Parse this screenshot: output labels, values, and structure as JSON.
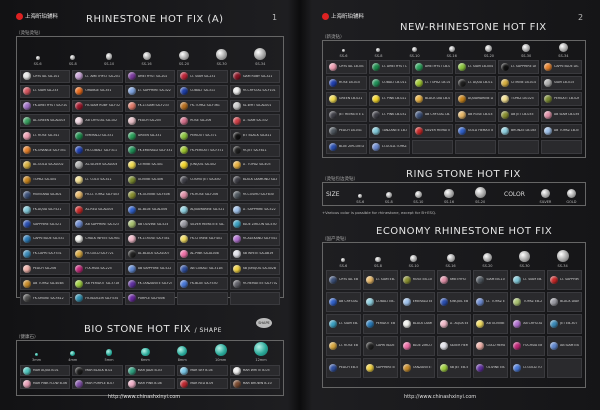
{
  "left": {
    "brand": "上海昕珀辅料",
    "page_number": "1",
    "title": "RHINESTONE HOT FIX (A)",
    "subtitle": "（烫钻烫钻）",
    "sizes": [
      "SS-6",
      "SS-8",
      "SS-10",
      "SS-16",
      "SS-20",
      "SS-30",
      "SS-34"
    ],
    "grid": [
      "CRYSTAL SA-101",
      "LT. AMETHYST SA-201",
      "AMETHYST SA-202",
      "LT. SIAM SA-231",
      "SIAM RUBY SA-321",
      "LT. SIAM SA-233",
      "ORANGE SA-351",
      "LT. SAPPHIRE SA-322",
      "COBALT SA-311",
      "FK.CRYSTAL SA-F101",
      "FK.AMETHYST SA-F202",
      "FK.SIAM RUBY SA-F321",
      "FK.LT.SIAM SA-F233",
      "FK.TOPAZ SA-F361",
      "AL.WHT SA-AL001",
      "AL.GREEN SA-AL003",
      "AB CRYSTAL SA-102",
      "PEACH SA-205",
      "ROSE SA-206",
      "LT. SIAM SA-332",
      "LT. ROSE SA-341",
      "EMERALD SA-331",
      "GREEN SA-331",
      "PERIDOT SA-371",
      "JET BLACK SA-811",
      "FK.ORANGE SA-F351",
      "FK.COBALT SA-F311",
      "FK.EMERALD SA-F331",
      "FK.PERIDOT SA-F371",
      "FK.JET SA-F811",
      "AL.GOLD SA-AL002",
      "AL.SILVER SA-AL004",
      "CITRINE SA-401",
      "JONQUIL SA-402",
      "LT. TOPAZ SA-403",
      "TOPAZ SA-404",
      "LT. COLO SA-411",
      "OLIVINE SA-406",
      "COSMO JET SA-830",
      "BLACK DIAMOND SA-820",
      "MONTANA SA-801",
      "FK.LT.TOPAZ SA-F403",
      "FK.OLIVINE SA-F406",
      "FK.ROSE SA-F206",
      "FK.COSMO SA-F830",
      "FK.AQUA SA-F521",
      "AL.RED SA-AL005",
      "AL.BLUE SA-AL006",
      "AQUAMARINE SA-521",
      "LT. SAPPHIRE SA-522",
      "SAPPHIRE SA-521",
      "AB SAPPHIRE SA-523",
      "AB OLIVINE SA-524",
      "SILVER HEMATITE SA-702",
      "BLUE ZIRCON SA-530",
      "CAPRI BLUE SA-531",
      "CHALK WHITE SA-901",
      "FK.LT.ROSE SA-F341",
      "FK.CITRINE SA-F401",
      "FK.ALEXAND SA-F541",
      "FK.CAPRI SA-F531",
      "FK.GOLD SA-F721",
      "AL.BLACK SA-AL007",
      "AL.PINK SA-AL008",
      "AB WHITE SA-AB19",
      "PEACH SA-206",
      "FUCHSIA SA-225",
      "AB SAPPHIRE SA-522",
      "AB COBALT SA-311B",
      "AB JONQUIL SA-402B",
      "AB TOPAZ SA-404B",
      "AB PERIDOT SA-371B",
      "FK.TANZANITE SA-F251",
      "FK.BLUE SA-F530",
      "FK.HEMATITE SA-F702",
      "FK.SMOKE SA-F812",
      "FK.BLUEZIR SA-F534",
      "PURPLE SA-H006",
      "",
      ""
    ],
    "bio_title": "BIO STONE HOT FIX",
    "bio_shape": "/ SHAPE",
    "bio_badge": "SHAPE",
    "bio_subtitle": "（健康石）",
    "bio_sizes": [
      "3mm",
      "4mm",
      "5mm",
      "6mm",
      "8mm",
      "10mm",
      "12mm"
    ],
    "bio_grid": [
      "MAR AQUA B-01",
      "MAR BLACK B-02",
      "MAR JADE B-03",
      "MAR SKY B-04",
      "MAR WHITE B-05",
      "MAR PINK FLOW B-06",
      "MAR PURPLE B-07",
      "MAR PINK B-08",
      "MAR RED B-09",
      "MAR BROWN B-10"
    ],
    "url": "http://www.chinashxinyi.com"
  },
  "right": {
    "brand": "上海昕珀辅料",
    "page_number": "2",
    "title": "NEW-RHINESTONE HOT FIX",
    "subtitle": "（新烫钻）",
    "sizes": [
      "SS-6",
      "SS-8",
      "SS-10",
      "SS-16",
      "SS-20",
      "SS-30",
      "SS-34"
    ],
    "grid": [
      "CRYSTAL LB-001",
      "LT. AMETHYST LB-002",
      "AMETHYST LB-003",
      "LT. SIAM LB-004",
      "LT. SAPPHIRE LB-005",
      "CAPRI BLUE LB-006",
      "ROSE LB-010",
      "COBALT LB-011",
      "LT. TOPAZ LB-012",
      "LT. AQUA LB-013",
      "CITRINE LB-014",
      "SIAM LB-015",
      "GREEN LB-021",
      "LT. PINK LB-022",
      "BLACK DIA LB-023",
      "AQUAMARINE LB-024",
      "TOPAZ LB-025",
      "PERIDOT LB-026",
      "JET HEMATITE LB-031",
      "LT. PINK LB-032",
      "AB CRYSTAL LB-033",
      "AB ROSE LB-034",
      "AB JET LB-035",
      "AB SIAM LB-036",
      "PEACH LB-041",
      "TANZANITE LB-042",
      "SILVER HEMATITE LB-043",
      "GOLD HEMATITE LB-044",
      "BRONZE LB-045",
      "AB TOPAZ LB-046",
      "BLUE ZIRCON LB-051",
      "LT.GOLD.TOPAZ LB-052",
      "",
      "",
      "",
      ""
    ],
    "ring_title": "RING STONE HOT FIX",
    "ring_subtitle": "（烫钻包边烫钻）",
    "ring_size_label": "SIZE",
    "ring_color_label": "COLOR",
    "ring_sizes": [
      "SS-6",
      "SS-8",
      "SS-10",
      "SS-16",
      "SS-20"
    ],
    "ring_colors": [
      "SILVER",
      "GOLD"
    ],
    "ring_note": "+Various color is possible for rhinestone, except for B+ESQ.",
    "eco_title": "ECONOMY RHINESTONE HOT FIX",
    "eco_subtitle": "（国产烫钻）",
    "eco_sizes": [
      "SS-6",
      "SS-8",
      "SS-10",
      "SS-16",
      "SS-20",
      "SS-30",
      "SS-34"
    ],
    "eco_grid": [
      "CRYSTAL EB-101",
      "LT. SIAM EB-102",
      "ROSE EB-103",
      "AMETHYST EB-104",
      "SIAM EB-105",
      "LT. SIAM EB-106",
      "LT. SAPPHIRE EB-107",
      "AB CRYSTAL EB-201",
      "COBALT EB-202",
      "EMERALD EB-203",
      "JONQUIL EB-204",
      "LT. TOPAZ EB-205",
      "TOPAZ EB-206",
      "BLACK DIAM EB-207",
      "LT. SIAM EB-301",
      "PERIDOT EB-302",
      "BLACK DIAMOND EB-303",
      "LT. AQUA EB-304",
      "AB OLIVINE EB-305",
      "AB CRYSTAL EB-306",
      "JET EB-307",
      "LT. ROSE EB-401",
      "CAPRI BLUE EB-402",
      "BLUE ZIRCON EB-403",
      "SILVER HEMATITE EB-404",
      "GOLD HEMATITE EB-405",
      "FUCHSIA EB-406",
      "AB SIAM EB-407",
      "PEACH EB-501",
      "SAPPHIRE EB-502",
      "TANZANITE EB-503",
      "AB JET EB-504",
      "OLIVINE EB-505",
      "LT.GOLD.TOPAZ EB-506",
      ""
    ],
    "url": "http://www.chinashxinyi.com"
  },
  "stone_colors": [
    "#eaeaea",
    "#c9a3d8",
    "#7c3b9e",
    "#c02438",
    "#8a1424",
    "#d4555f",
    "#e86a1c",
    "#7fa3de",
    "#1e3fa8",
    "#f0f0f0",
    "#a070c8",
    "#a0172c",
    "#e07a6a",
    "#b87020",
    "#cfcfcf",
    "#3aa060",
    "#f2d8e2",
    "#e8c0c8",
    "#d4708c",
    "#d04048",
    "#f0a0b4",
    "#1c8c4c",
    "#2aa05a",
    "#8cc63e",
    "#111111",
    "#e6802a",
    "#2040b0",
    "#209058",
    "#a0c830",
    "#202020",
    "#d8b040",
    "#b0b0b0",
    "#f2dc50",
    "#f4d62a",
    "#e8b040",
    "#c8841c",
    "#f4e090",
    "#7a8a30",
    "#404048",
    "#3c3c44",
    "#3c5078",
    "#e8b868",
    "#8a9030",
    "#e090a8",
    "#505860",
    "#80c8d8",
    "#c82828",
    "#3060c8",
    "#8fd0e0",
    "#9ec0ea",
    "#2a4fb0",
    "#6c8ad0",
    "#a8c070",
    "#9a9aa2",
    "#3aa0c0",
    "#2a7ab8",
    "#f4f4f0",
    "#f0b8c8",
    "#f2dc60",
    "#b070d0",
    "#3a8ab8",
    "#d8a840",
    "#222222",
    "#f070a8",
    "#e4e4ec",
    "#f0b0a8",
    "#c02878",
    "#6088d0",
    "#3050a0",
    "#f0d040",
    "#c88c2a",
    "#a0d040",
    "#6030a0",
    "#4878d8",
    "#606068",
    "#505050",
    "#3090b0",
    "#6a2aa0"
  ],
  "bio_colors": [
    "#52c8c0",
    "#1c1c1c",
    "#30a080",
    "#7ac8e8",
    "#f2f2f2",
    "#e8a0b8",
    "#8050a8",
    "#f0b0c8",
    "#c02830",
    "#7a4a30"
  ]
}
